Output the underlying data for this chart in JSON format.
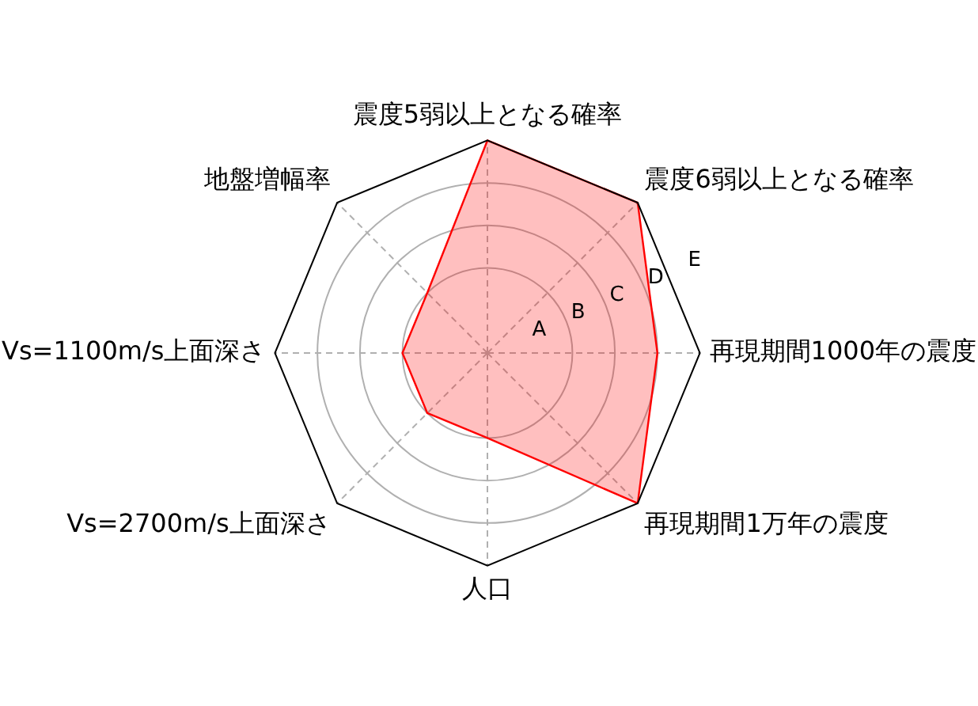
{
  "chart_data": {
    "type": "radar",
    "categories": [
      "震度5弱以上となる確率",
      "震度6弱以上となる確率",
      "再現期間1000年の震度",
      "再現期間1万年の震度",
      "人口",
      "Vs=2700m/s上面深さ",
      "Vs=1100m/s上面深さ",
      "地盤増幅率"
    ],
    "series": [
      {
        "color": "#ff0000",
        "values": [
          5,
          5,
          4,
          5,
          2,
          2,
          2,
          2
        ]
      }
    ],
    "ylim": [
      0,
      5
    ],
    "yticks": [
      {
        "value": 1,
        "label": "A"
      },
      {
        "value": 2,
        "label": "B"
      },
      {
        "value": 3,
        "label": "C"
      },
      {
        "value": 4,
        "label": "D"
      },
      {
        "value": 5,
        "label": "E"
      }
    ],
    "grid": true,
    "marker": "none"
  }
}
